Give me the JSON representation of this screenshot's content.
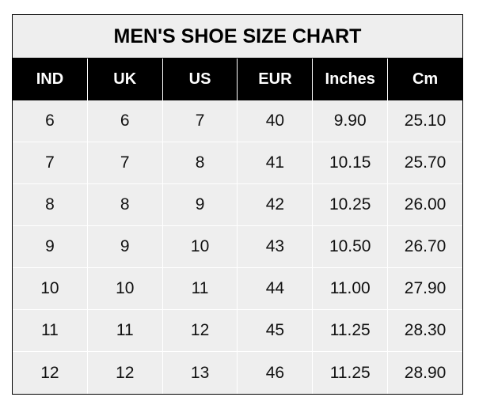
{
  "chart_data": {
    "type": "table",
    "title": "MEN'S SHOE SIZE CHART",
    "columns": [
      "IND",
      "UK",
      "US",
      "EUR",
      "Inches",
      "Cm"
    ],
    "rows": [
      [
        "6",
        "6",
        "7",
        "40",
        "9.90",
        "25.10"
      ],
      [
        "7",
        "7",
        "8",
        "41",
        "10.15",
        "25.70"
      ],
      [
        "8",
        "8",
        "9",
        "42",
        "10.25",
        "26.00"
      ],
      [
        "9",
        "9",
        "10",
        "43",
        "10.50",
        "26.70"
      ],
      [
        "10",
        "10",
        "11",
        "44",
        "11.00",
        "27.90"
      ],
      [
        "11",
        "11",
        "12",
        "45",
        "11.25",
        "28.30"
      ],
      [
        "12",
        "12",
        "13",
        "46",
        "11.25",
        "28.90"
      ]
    ],
    "colors": {
      "header_bg": "#000000",
      "header_text": "#ffffff",
      "body_bg": "#eeeeee",
      "grid": "#ffffff"
    }
  }
}
